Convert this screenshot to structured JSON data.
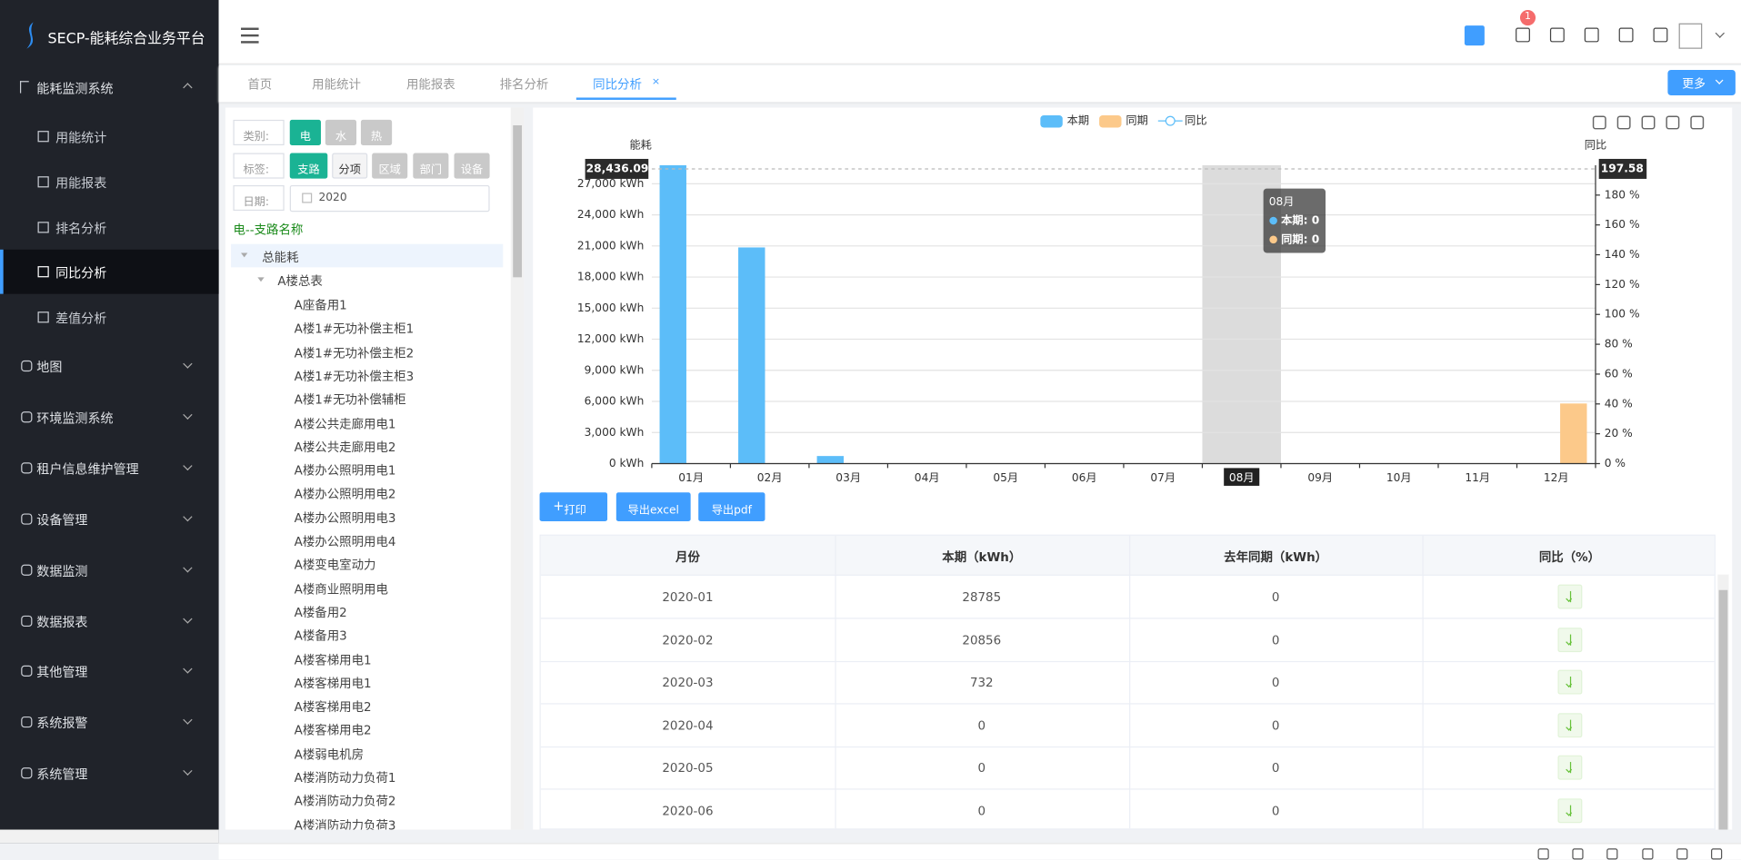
{
  "header": {
    "brand": "SECP-能耗综合业务平台",
    "badge": "1"
  },
  "sidebar": {
    "group": "能耗监测系统",
    "items": [
      "用能统计",
      "用能报表",
      "排名分析",
      "同比分析",
      "差值分析"
    ],
    "active": "同比分析",
    "menus": [
      "地图",
      "环境监测系统",
      "租户信息维护管理",
      "设备管理",
      "数据监测",
      "数据报表",
      "其他管理",
      "系统报警",
      "系统管理"
    ]
  },
  "tabs": {
    "items": [
      "首页",
      "用能统计",
      "用能报表",
      "排名分析",
      "同比分析"
    ],
    "active": "同比分析",
    "more": "更多"
  },
  "filters": {
    "category_label": "类别:",
    "categories": [
      "电",
      "水",
      "热"
    ],
    "tag_label": "标签:",
    "tags": [
      "支路",
      "分项",
      "区域",
      "部门",
      "设备"
    ],
    "date_label": "日期:",
    "date": "2020"
  },
  "tree": {
    "title": "电--支路名称",
    "root": "总能耗",
    "group": "A楼总表",
    "leaves": [
      "A座备用1",
      "A楼1#无功补偿主柜1",
      "A楼1#无功补偿主柜2",
      "A楼1#无功补偿主柜3",
      "A楼1#无功补偿辅柜",
      "A楼公共走廊用电1",
      "A楼公共走廊用电2",
      "A楼办公照明用电1",
      "A楼办公照明用电2",
      "A楼办公照明用电3",
      "A楼办公照明用电4",
      "A楼变电室动力",
      "A楼商业照明用电",
      "A楼备用2",
      "A楼备用3",
      "A楼客梯用电1",
      "A楼客梯用电1",
      "A楼客梯用电2",
      "A楼客梯用电2",
      "A楼弱电机房",
      "A楼消防动力负荷1",
      "A楼消防动力负荷2",
      "A楼消防动力负荷3"
    ]
  },
  "chart_data": {
    "type": "bar",
    "y_label": "能耗",
    "y2_label": "同比",
    "categories": [
      "01月",
      "02月",
      "03月",
      "04月",
      "05月",
      "06月",
      "07月",
      "08月",
      "09月",
      "10月",
      "11月",
      "12月"
    ],
    "series": [
      {
        "name": "本期",
        "color": "#5cbdf9",
        "values": [
          28785,
          20856,
          732,
          0,
          0,
          0,
          0,
          0,
          0,
          0,
          0,
          0
        ]
      },
      {
        "name": "同期",
        "color": "#fcc98a",
        "values": [
          0,
          0,
          0,
          0,
          0,
          0,
          0,
          0,
          0,
          0,
          0,
          5800
        ]
      },
      {
        "name": "同比",
        "type": "line",
        "axis": "y2",
        "color": "#5cbdf9",
        "values": [
          null,
          null,
          null,
          null,
          null,
          null,
          null,
          null,
          null,
          null,
          null,
          null
        ]
      }
    ],
    "ylim": [
      0,
      28785
    ],
    "yticks": [
      {
        "value": 0,
        "label": "0 kWh"
      },
      {
        "value": 3000,
        "label": "3,000 kWh"
      },
      {
        "value": 6000,
        "label": "6,000 kWh"
      },
      {
        "value": 9000,
        "label": "9,000 kWh"
      },
      {
        "value": 12000,
        "label": "12,000 kWh"
      },
      {
        "value": 15000,
        "label": "15,000 kWh"
      },
      {
        "value": 18000,
        "label": "18,000 kWh"
      },
      {
        "value": 21000,
        "label": "21,000 kWh"
      },
      {
        "value": 24000,
        "label": "24,000 kWh"
      },
      {
        "value": 27000,
        "label": "27,000 kWh"
      }
    ],
    "y2lim": [
      0,
      200
    ],
    "y2ticks": [
      {
        "value": 0,
        "label": "0 %"
      },
      {
        "value": 20,
        "label": "20 %"
      },
      {
        "value": 40,
        "label": "40 %"
      },
      {
        "value": 60,
        "label": "60 %"
      },
      {
        "value": 80,
        "label": "80 %"
      },
      {
        "value": 100,
        "label": "100 %"
      },
      {
        "value": 120,
        "label": "120 %"
      },
      {
        "value": 140,
        "label": "140 %"
      },
      {
        "value": 160,
        "label": "160 %"
      },
      {
        "value": 180,
        "label": "180 %"
      }
    ],
    "grid": true,
    "pointer": {
      "value": 28436.09,
      "label": "28,436.09"
    },
    "pointer2": {
      "value": 197.58,
      "label": "197.58"
    },
    "tooltip": {
      "title": "08月",
      "lines": [
        "本期: 0",
        "同期: 0"
      ]
    }
  },
  "buttons": [
    "打印",
    "导出excel",
    "导出pdf"
  ],
  "table": {
    "columns": [
      "月份",
      "本期（kWh）",
      "去年同期（kWh）",
      "同比（%）"
    ],
    "rows": [
      [
        "2020-01",
        28785,
        0
      ],
      [
        "2020-02",
        20856,
        0
      ],
      [
        "2020-03",
        732,
        0
      ],
      [
        "2020-04",
        0,
        0
      ],
      [
        "2020-05",
        0,
        0
      ],
      [
        "2020-06",
        0,
        0
      ]
    ]
  }
}
